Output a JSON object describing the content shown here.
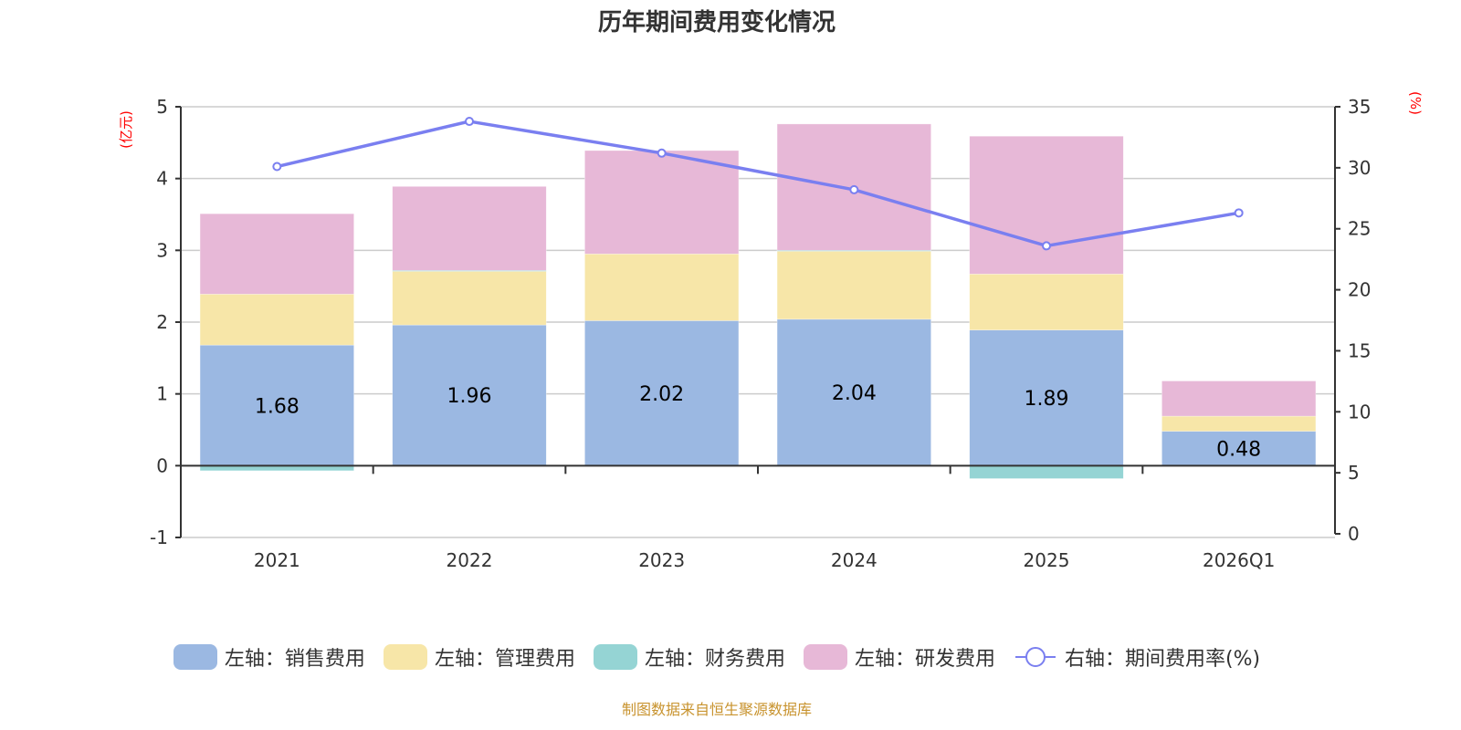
{
  "chart_data": {
    "type": "bar",
    "stacked": true,
    "title": "历年期间费用变化情况",
    "categories": [
      "2021",
      "2022",
      "2023",
      "2024",
      "2025",
      "2026Q1"
    ],
    "left_axis": {
      "label": "(亿元)",
      "range": [
        -1,
        5
      ],
      "ticks": [
        "-1",
        "0",
        "1",
        "2",
        "3",
        "4",
        "5"
      ]
    },
    "right_axis": {
      "label": "(%)",
      "range": [
        0,
        35
      ],
      "ticks": [
        "0",
        "5",
        "10",
        "15",
        "20",
        "25",
        "30",
        "35"
      ]
    },
    "grid": true,
    "legend_position": "bottom",
    "series": [
      {
        "name": "左轴：销售费用",
        "type": "bar",
        "axis": "left",
        "color": "#9bb8e2",
        "values": [
          1.68,
          1.96,
          2.02,
          2.04,
          1.89,
          0.48
        ],
        "show_labels": true,
        "labels": [
          "1.68",
          "1.96",
          "2.02",
          "2.04",
          "1.89",
          "0.48"
        ]
      },
      {
        "name": "左轴：管理费用",
        "type": "bar",
        "axis": "left",
        "color": "#f7e6a8",
        "values": [
          0.71,
          0.75,
          0.93,
          0.95,
          0.78,
          0.21
        ]
      },
      {
        "name": "左轴：财务费用",
        "type": "bar",
        "axis": "left",
        "color": "#95d4d4",
        "values": [
          -0.07,
          0.01,
          0.0,
          0.01,
          -0.18,
          0.0
        ]
      },
      {
        "name": "左轴：研发费用",
        "type": "bar",
        "axis": "left",
        "color": "#e7b8d7",
        "values": [
          1.12,
          1.17,
          1.44,
          1.76,
          1.92,
          0.49
        ]
      },
      {
        "name": "右轴：期间费用率(%)",
        "type": "line",
        "axis": "right",
        "color": "#7a7ff0",
        "values": [
          30.1,
          33.8,
          31.2,
          28.2,
          23.6,
          26.3
        ]
      }
    ]
  },
  "footer": {
    "source": "制图数据来自恒生聚源数据库"
  }
}
